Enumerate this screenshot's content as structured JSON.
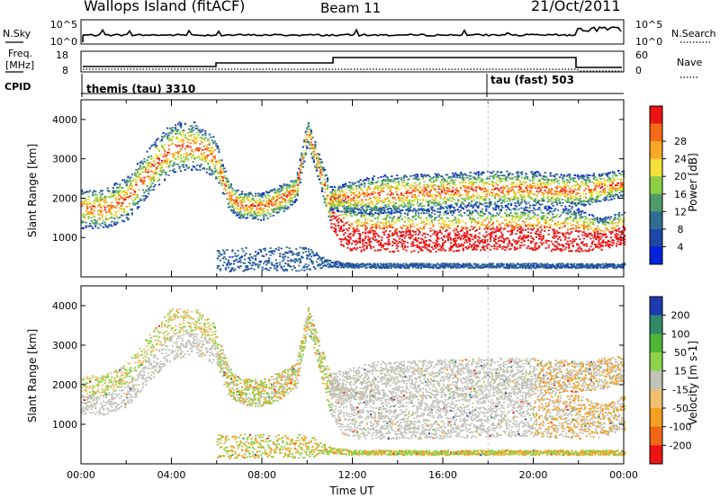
{
  "header": {
    "station": "Wallops Island (fitACF)",
    "beam": "Beam 11",
    "date": "21/Oct/2011"
  },
  "summary_panels": {
    "nsky_label": "N.Sky",
    "nsky_ticks": [
      "10^5",
      "10^0"
    ],
    "nsearch_label": "N.Search",
    "nsearch_ticks": [
      "10^5",
      "10^0"
    ],
    "freq_label_1": "Freq.",
    "freq_label_2": "[MHz]",
    "freq_ticks": [
      "18",
      "8"
    ],
    "nave_label": "Nave",
    "nave_ticks": [
      "60",
      "0"
    ],
    "cpid_label": "CPID",
    "cpid_segments": [
      {
        "label": "themis (tau) 3310",
        "start_hour": 0
      },
      {
        "label": "tau (fast) 503",
        "start_hour": 18
      }
    ]
  },
  "chart_data": [
    {
      "type": "heatmap",
      "title": "",
      "ylabel": "Slant Range [km]",
      "xlabel": "",
      "xlim": [
        0,
        24
      ],
      "ylim": [
        0,
        4500
      ],
      "yticks": [
        1000,
        2000,
        3000,
        4000
      ],
      "colorbar": {
        "label": "Power [dB]",
        "tick_labels": [
          "4",
          "8",
          "12",
          "16",
          "20",
          "24",
          "28"
        ],
        "colors": [
          "#0022dd",
          "#1f46a8",
          "#2f6e8f",
          "#4f9a6a",
          "#8ccf46",
          "#f4e23a",
          "#f8a826",
          "#f56a18",
          "#ee1414"
        ]
      },
      "bands": [
        {
          "name": "main",
          "x": [
            0,
            1,
            2,
            3,
            4,
            5,
            5.9,
            6.5,
            7,
            8,
            9,
            9.5,
            10,
            10.5,
            11,
            11.5,
            12,
            14,
            16,
            18,
            20,
            22,
            23,
            24
          ],
          "y": [
            1750,
            1750,
            2000,
            2700,
            3300,
            3350,
            3050,
            2100,
            1850,
            1800,
            2050,
            2250,
            3700,
            2800,
            1800,
            1400,
            1250,
            1200,
            1200,
            1250,
            1250,
            1200,
            1100,
            1300
          ],
          "w": [
            500,
            500,
            550,
            600,
            650,
            600,
            500,
            350,
            350,
            350,
            350,
            300,
            300,
            350,
            500,
            600,
            600,
            550,
            550,
            550,
            550,
            550,
            400,
            450
          ]
        },
        {
          "name": "upper",
          "x": [
            11,
            13,
            16,
            18,
            20,
            22,
            24
          ],
          "y": [
            2000,
            2100,
            2200,
            2250,
            2250,
            2200,
            2400
          ],
          "w": [
            300,
            500,
            450,
            450,
            450,
            400,
            350
          ]
        },
        {
          "name": "near-range",
          "x": [
            6,
            7,
            8,
            9,
            10,
            11,
            12,
            14,
            16,
            18,
            20,
            22,
            24
          ],
          "y": [
            450,
            460,
            470,
            470,
            460,
            350,
            300,
            300,
            300,
            300,
            300,
            300,
            300
          ],
          "w": [
            300,
            300,
            300,
            300,
            300,
            80,
            60,
            60,
            60,
            60,
            60,
            60,
            60
          ]
        }
      ]
    },
    {
      "type": "heatmap",
      "title": "",
      "ylabel": "Slant Range [km]",
      "xlabel": "Time UT",
      "xlim": [
        0,
        24
      ],
      "ylim": [
        0,
        4500
      ],
      "yticks": [
        1000,
        2000,
        3000,
        4000
      ],
      "xticks": [
        "00:00",
        "04:00",
        "08:00",
        "12:00",
        "16:00",
        "20:00",
        "00:00"
      ],
      "colorbar": {
        "label": "Velocity [m s-1]",
        "tick_labels": [
          "200",
          "100",
          "50",
          "15",
          "-15",
          "-50",
          "-100",
          "-200"
        ],
        "colors": [
          "#1e3ab0",
          "#2f8a6a",
          "#4cb637",
          "#8fd34a",
          "#c3c3b8",
          "#f0c070",
          "#f2a020",
          "#f26618",
          "#ee1414"
        ]
      },
      "bands": [
        {
          "name": "main",
          "x": [
            0,
            1,
            2,
            3,
            4,
            5,
            5.9,
            6.5,
            7,
            8,
            9,
            9.5,
            10,
            10.5,
            11,
            11.5,
            12,
            14,
            16,
            18,
            20,
            22,
            23,
            24
          ],
          "y": [
            1750,
            1750,
            2000,
            2700,
            3300,
            3350,
            3050,
            2100,
            1850,
            1800,
            2050,
            2250,
            3700,
            2800,
            1800,
            1400,
            1250,
            1200,
            1200,
            1250,
            1250,
            1200,
            1100,
            1300
          ],
          "w": [
            500,
            500,
            550,
            600,
            650,
            600,
            500,
            350,
            350,
            350,
            350,
            300,
            300,
            350,
            500,
            600,
            600,
            550,
            550,
            550,
            550,
            550,
            400,
            450
          ]
        },
        {
          "name": "upper",
          "x": [
            11,
            13,
            16,
            18,
            20,
            22,
            24
          ],
          "y": [
            2000,
            2100,
            2200,
            2250,
            2250,
            2200,
            2400
          ],
          "w": [
            300,
            500,
            450,
            450,
            450,
            400,
            350
          ]
        },
        {
          "name": "near-range",
          "x": [
            6,
            7,
            8,
            9,
            10,
            11,
            12,
            14,
            16,
            18,
            20,
            22,
            24
          ],
          "y": [
            450,
            460,
            470,
            470,
            460,
            350,
            300,
            300,
            300,
            300,
            300,
            300,
            300
          ],
          "w": [
            300,
            300,
            300,
            300,
            300,
            80,
            60,
            60,
            60,
            60,
            60,
            60,
            60
          ]
        }
      ]
    }
  ]
}
